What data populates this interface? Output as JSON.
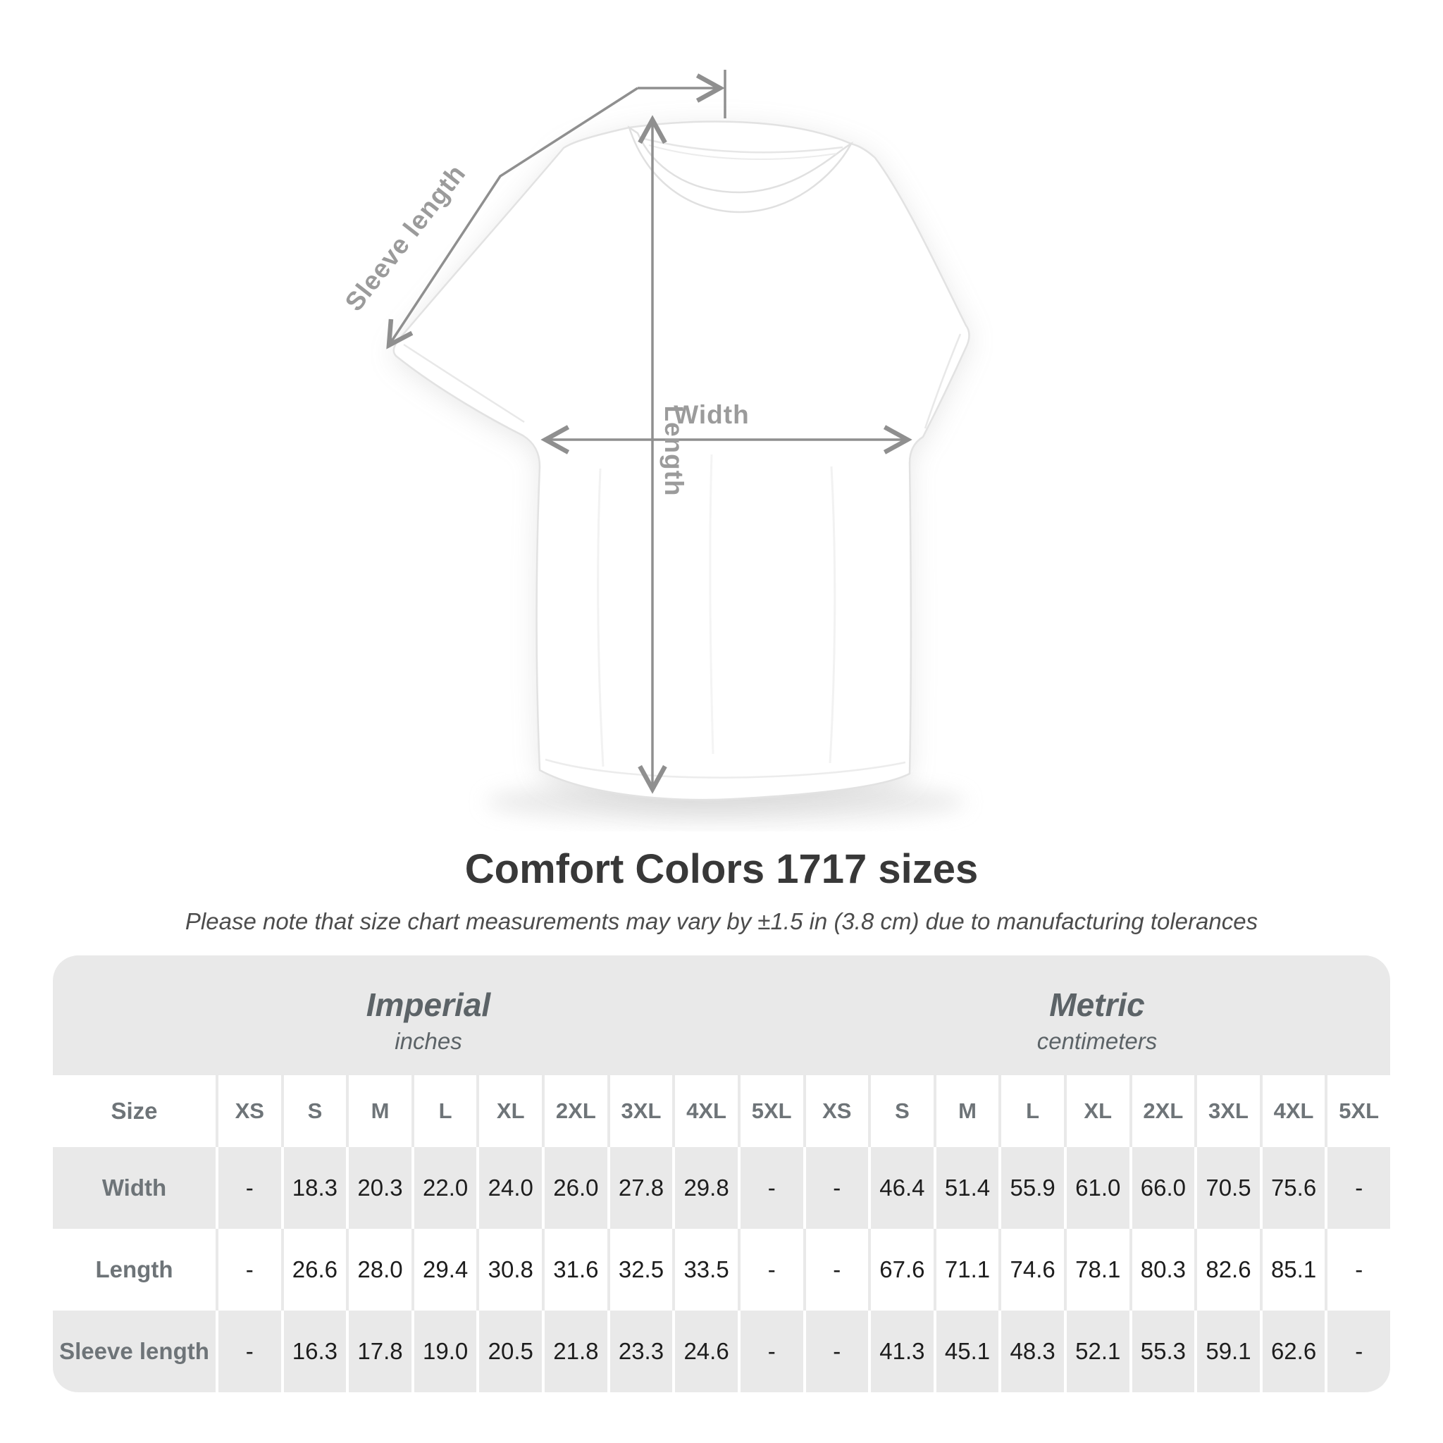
{
  "diagram": {
    "labels": {
      "sleeve_length": "Sleeve length",
      "length": "Length",
      "width": "Width"
    }
  },
  "title": "Comfort Colors 1717 sizes",
  "subtitle": "Please note that size chart measurements may vary by ±1.5 in (3.8 cm) due to manufacturing tolerances",
  "table": {
    "size_header_label": "Size",
    "unit_groups": [
      {
        "name": "Imperial",
        "unit": "inches"
      },
      {
        "name": "Metric",
        "unit": "centimeters"
      }
    ],
    "sizes": [
      "XS",
      "S",
      "M",
      "L",
      "XL",
      "2XL",
      "3XL",
      "4XL",
      "5XL"
    ],
    "rows": [
      {
        "label": "Width",
        "imperial": [
          "-",
          "18.3",
          "20.3",
          "22.0",
          "24.0",
          "26.0",
          "27.8",
          "29.8",
          "-"
        ],
        "metric": [
          "-",
          "46.4",
          "51.4",
          "55.9",
          "61.0",
          "66.0",
          "70.5",
          "75.6",
          "-"
        ]
      },
      {
        "label": "Length",
        "imperial": [
          "-",
          "26.6",
          "28.0",
          "29.4",
          "30.8",
          "31.6",
          "32.5",
          "33.5",
          "-"
        ],
        "metric": [
          "-",
          "67.6",
          "71.1",
          "74.6",
          "78.1",
          "80.3",
          "82.6",
          "85.1",
          "-"
        ]
      },
      {
        "label": "Sleeve length",
        "imperial": [
          "-",
          "16.3",
          "17.8",
          "19.0",
          "20.5",
          "21.8",
          "23.3",
          "24.6",
          "-"
        ],
        "metric": [
          "-",
          "41.3",
          "45.1",
          "48.3",
          "52.1",
          "55.3",
          "59.1",
          "62.6",
          "-"
        ]
      }
    ]
  }
}
